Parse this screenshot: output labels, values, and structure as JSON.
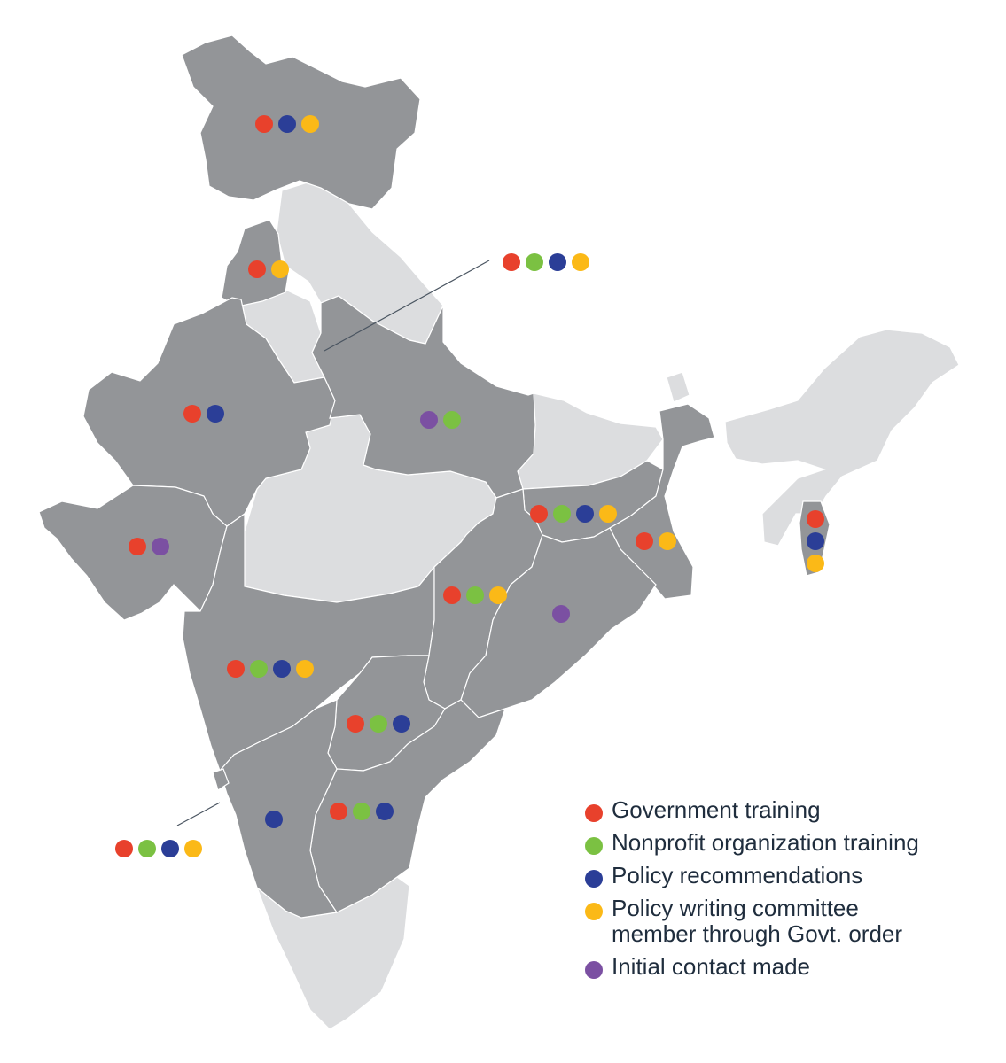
{
  "colors": {
    "state_active": "#939598",
    "state_inactive": "#dcdddf",
    "border": "#ffffff",
    "leader_line": "#4a5561"
  },
  "legend": {
    "items": [
      {
        "key": "gov",
        "label": "Government training",
        "color": "#e8412c"
      },
      {
        "key": "ngo",
        "label": "Nonprofit organization training",
        "color": "#7bc142"
      },
      {
        "key": "policy",
        "label": "Policy recommendations",
        "color": "#2b3e97"
      },
      {
        "key": "committee",
        "label": "Policy writing committee member through Govt. order",
        "color": "#fbb917"
      },
      {
        "key": "contact",
        "label": "Initial contact made",
        "color": "#7b50a2"
      }
    ]
  },
  "regions": [
    {
      "id": "jammu-kashmir",
      "markers": [
        "gov",
        "policy",
        "committee"
      ]
    },
    {
      "id": "punjab",
      "markers": [
        "gov",
        "committee"
      ]
    },
    {
      "id": "delhi",
      "markers": [
        "gov",
        "ngo",
        "policy",
        "committee"
      ]
    },
    {
      "id": "rajasthan",
      "markers": [
        "gov",
        "policy"
      ]
    },
    {
      "id": "uttar-pradesh",
      "markers": [
        "contact",
        "ngo"
      ]
    },
    {
      "id": "gujarat",
      "markers": [
        "gov",
        "contact"
      ]
    },
    {
      "id": "jharkhand",
      "markers": [
        "gov",
        "ngo",
        "policy",
        "committee"
      ]
    },
    {
      "id": "west-bengal",
      "markers": [
        "gov",
        "committee"
      ]
    },
    {
      "id": "manipur-mizoram",
      "markers": [
        "gov",
        "policy",
        "committee"
      ]
    },
    {
      "id": "chhattisgarh",
      "markers": [
        "gov",
        "ngo",
        "committee"
      ]
    },
    {
      "id": "odisha",
      "markers": [
        "contact"
      ]
    },
    {
      "id": "maharashtra",
      "markers": [
        "gov",
        "ngo",
        "policy",
        "committee"
      ]
    },
    {
      "id": "telangana",
      "markers": [
        "gov",
        "ngo",
        "policy"
      ]
    },
    {
      "id": "andhra-pradesh",
      "markers": [
        "gov",
        "ngo",
        "policy"
      ]
    },
    {
      "id": "karnataka",
      "markers": [
        "policy"
      ]
    },
    {
      "id": "goa",
      "markers": [
        "gov",
        "ngo",
        "policy",
        "committee"
      ]
    }
  ]
}
